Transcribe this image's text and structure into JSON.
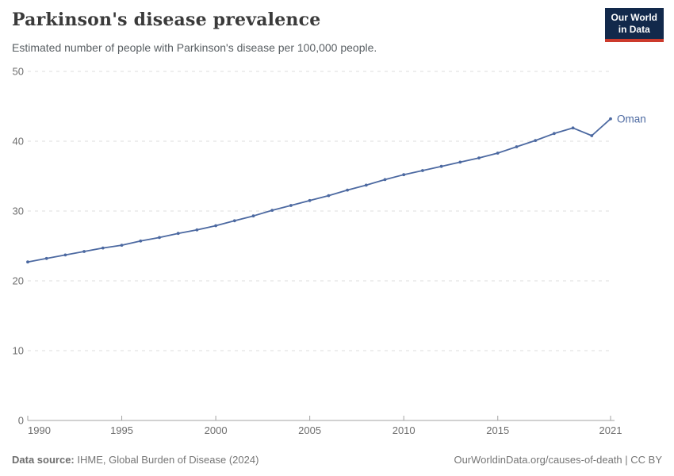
{
  "header": {
    "title": "Parkinson's disease prevalence",
    "subtitle": "Estimated number of people with Parkinson's disease per 100,000 people.",
    "logo": {
      "line1": "Our World",
      "line2": "in Data"
    }
  },
  "chart_data": {
    "type": "line",
    "title": "Parkinson's disease prevalence",
    "subtitle": "Estimated number of people with Parkinson's disease per 100,000 people.",
    "x": [
      1990,
      1991,
      1992,
      1993,
      1994,
      1995,
      1996,
      1997,
      1998,
      1999,
      2000,
      2001,
      2002,
      2003,
      2004,
      2005,
      2006,
      2007,
      2008,
      2009,
      2010,
      2011,
      2012,
      2013,
      2014,
      2015,
      2016,
      2017,
      2018,
      2019,
      2020,
      2021
    ],
    "series": [
      {
        "name": "Oman",
        "values": [
          22.7,
          23.2,
          23.7,
          24.2,
          24.7,
          25.1,
          25.7,
          26.2,
          26.8,
          27.3,
          27.9,
          28.6,
          29.3,
          30.1,
          30.8,
          31.5,
          32.2,
          33.0,
          33.7,
          34.5,
          35.2,
          35.8,
          36.4,
          37.0,
          37.6,
          38.3,
          39.2,
          40.1,
          41.1,
          41.9,
          40.8,
          43.2
        ]
      }
    ],
    "xlabel": "",
    "ylabel": "",
    "xlim": [
      1990,
      2021
    ],
    "ylim": [
      0,
      50
    ],
    "x_ticks": [
      1990,
      1995,
      2000,
      2005,
      2010,
      2015,
      2021
    ],
    "y_ticks": [
      0,
      10,
      20,
      30,
      40,
      50
    ],
    "grid": "horizontal-dashed",
    "legend_position": "end-of-line-label",
    "entity_label": "Oman"
  },
  "colors": {
    "line": "#4c69a1",
    "gridline": "#dcdcdc",
    "axis": "#a3a3a3",
    "tick_label": "#6e6e6e",
    "logo_bg": "#12294b",
    "logo_red": "#cc3a2c"
  },
  "footer": {
    "source_label": "Data source:",
    "source_text": " IHME, Global Burden of Disease (2024)",
    "right_text": "OurWorldinData.org/causes-of-death | CC BY"
  }
}
